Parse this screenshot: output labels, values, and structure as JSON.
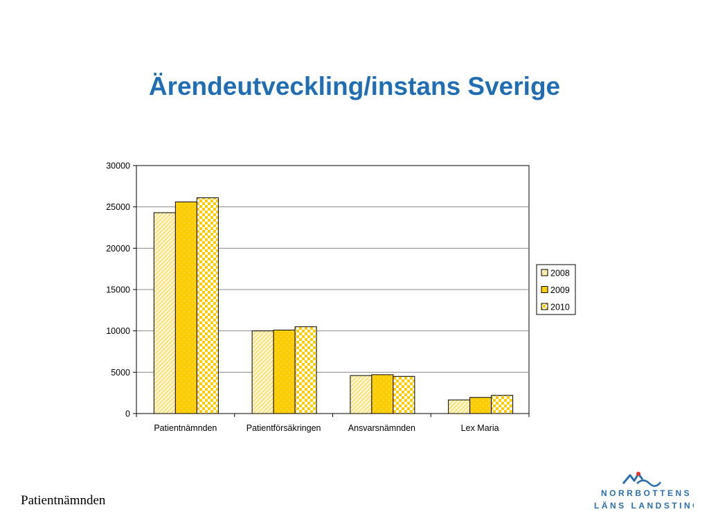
{
  "slide": {
    "title": "Ärendeutveckling/instans Sverige",
    "footer": "Patientnämnden",
    "logo": {
      "line1": "NORRBOTTENS",
      "line2": "LÄNS LANDSTING",
      "icon": "mountain-wave-logo-icon"
    }
  },
  "colors": {
    "title": "#1f6db5",
    "bar_fill": "#ffcc00",
    "bar_light": "#ffe98a",
    "logo": "#2a6fb0"
  },
  "chart_data": {
    "type": "bar",
    "categories": [
      "Patientnämnden",
      "Patientförsäkringen",
      "Ansvarsnämnden",
      "Lex Maria"
    ],
    "series": [
      {
        "name": "2008",
        "values": [
          24300,
          10000,
          4600,
          1650
        ]
      },
      {
        "name": "2009",
        "values": [
          25600,
          10100,
          4700,
          1950
        ]
      },
      {
        "name": "2010",
        "values": [
          26100,
          10500,
          4500,
          2200
        ]
      }
    ],
    "ylim": [
      0,
      30000
    ],
    "yticks": [
      0,
      5000,
      10000,
      15000,
      20000,
      25000,
      30000
    ],
    "grid": true,
    "legend": "right"
  }
}
